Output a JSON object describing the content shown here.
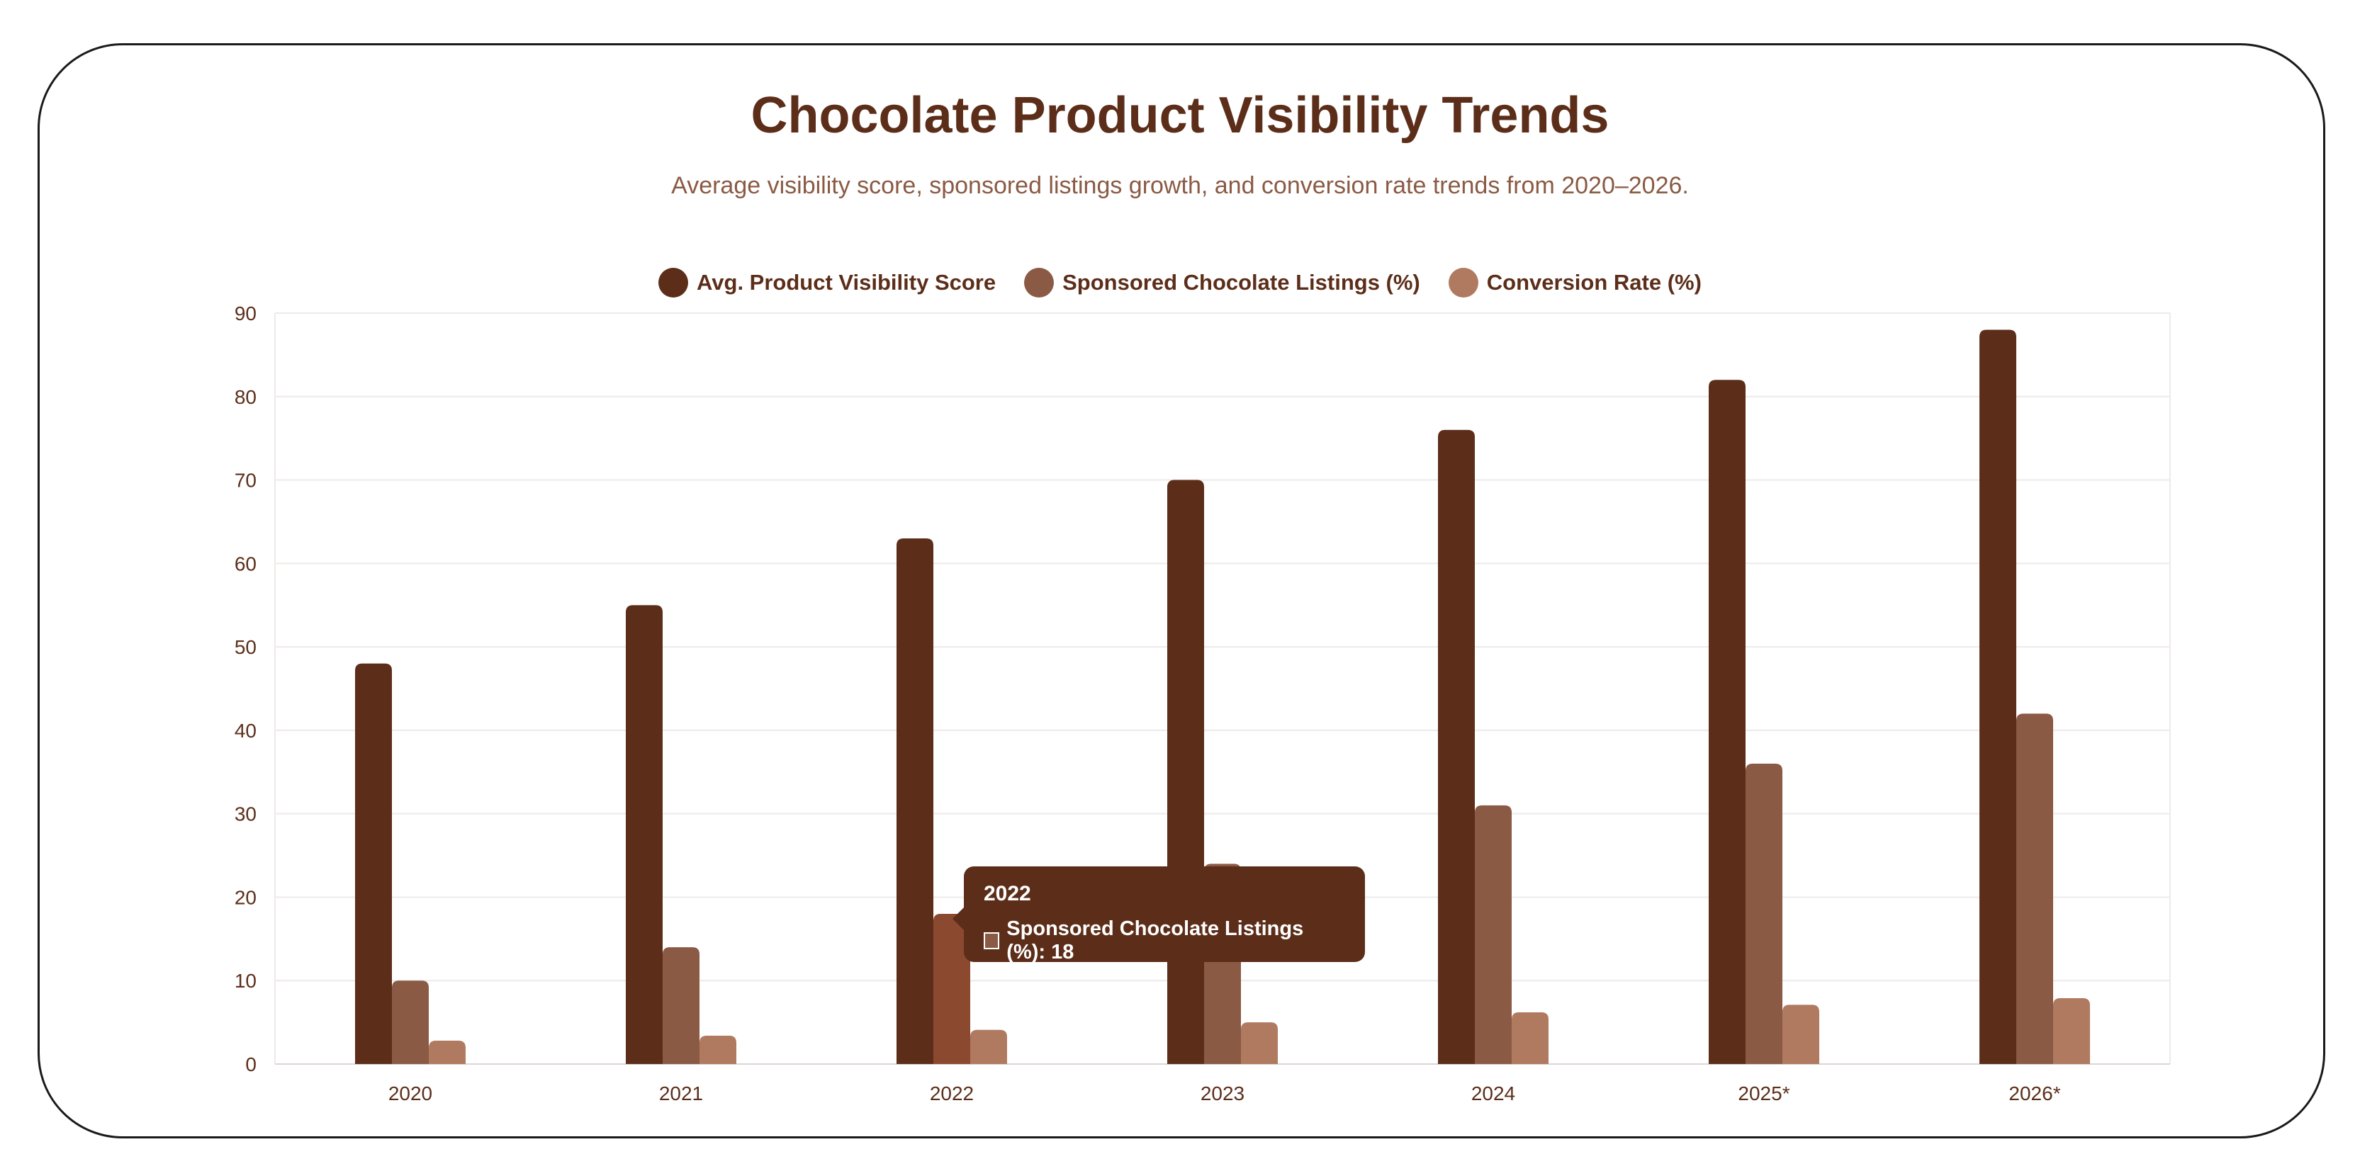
{
  "chart_data": {
    "type": "bar",
    "title": "Chocolate Product Visibility Trends",
    "subtitle": "Average visibility score, sponsored listings growth, and conversion rate trends from 2020–2026.",
    "categories": [
      "2020",
      "2021",
      "2022",
      "2023",
      "2024",
      "2025*",
      "2026*"
    ],
    "series": [
      {
        "name": "Avg. Product Visibility Score",
        "color": "#5c2e1a",
        "values": [
          48,
          55,
          63,
          70,
          76,
          82,
          88
        ]
      },
      {
        "name": "Sponsored Chocolate Listings (%)",
        "color": "#8b5a45",
        "values": [
          10,
          14,
          18,
          24,
          31,
          36,
          42
        ]
      },
      {
        "name": "Conversion Rate (%)",
        "color": "#b07a60",
        "values": [
          2.8,
          3.4,
          4.1,
          5.0,
          6.2,
          7.1,
          7.9
        ]
      }
    ],
    "ylim": [
      0,
      90
    ],
    "yticks": [
      0,
      10,
      20,
      30,
      40,
      50,
      60,
      70,
      80,
      90
    ],
    "grid": true,
    "legend_position": "top-center",
    "highlight": {
      "category_index": 2,
      "series_index": 1,
      "color": "#8b4a30"
    },
    "tooltip": {
      "title": "2022",
      "text": "Sponsored Chocolate Listings (%): 18"
    }
  }
}
